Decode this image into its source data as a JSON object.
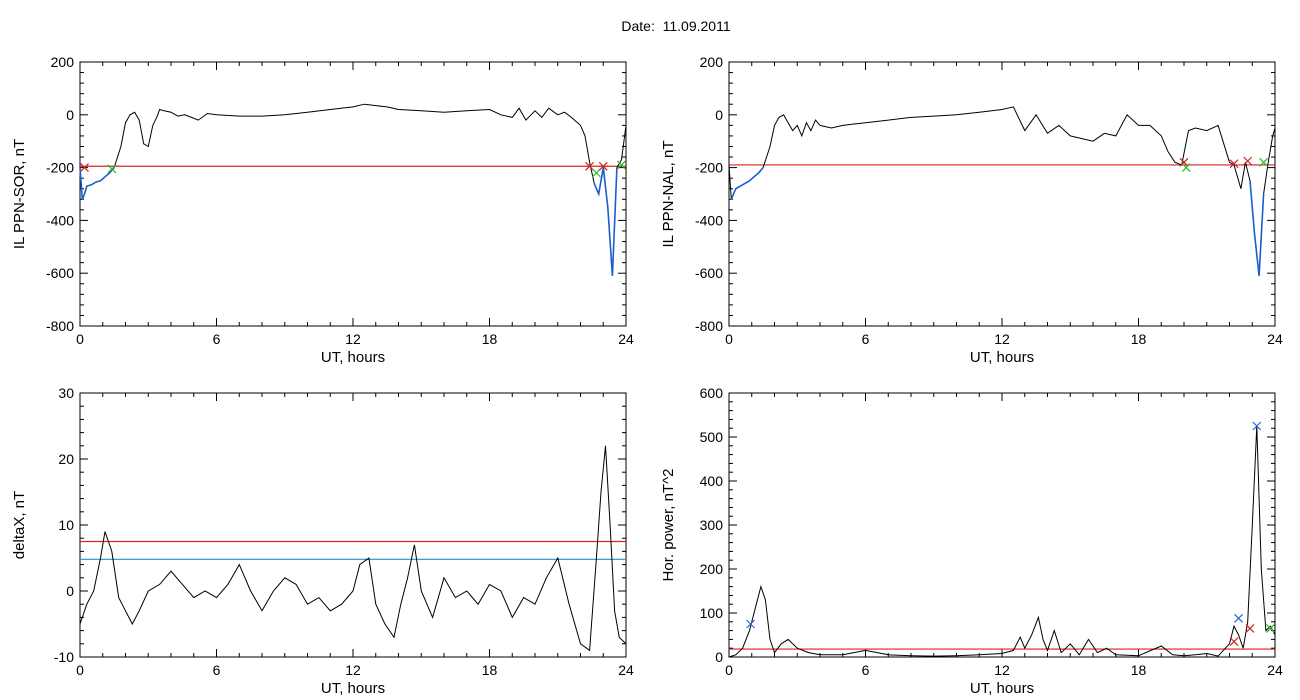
{
  "title": "Date:  11.09.2011",
  "colors": {
    "data": "#000000",
    "threshold_red": "#dd2222",
    "threshold_blue": "#2a8fd0",
    "highlight_blue": "#1a5fd0",
    "marker_green": "#22c022",
    "marker_red": "#cc2222",
    "marker_blue": "#2266dd"
  },
  "chart_data": [
    {
      "type": "line",
      "ylabel": "IL PPN-SOR, nT",
      "xlabel": "UT, hours",
      "xlim": [
        0,
        24
      ],
      "ylim": [
        -800,
        200
      ],
      "xticks": [
        0,
        6,
        12,
        18,
        24
      ],
      "xtick_labels": [
        "0",
        "6",
        "12",
        "18",
        "24"
      ],
      "yticks": [
        -800,
        -600,
        -400,
        -200,
        0,
        200
      ],
      "ytick_labels": [
        "-800",
        "-600",
        "-400",
        "-200",
        "0",
        "200"
      ],
      "thresholds": [
        {
          "y": -195,
          "color": "red"
        }
      ],
      "x": [
        0,
        0.1,
        0.2,
        0.3,
        0.5,
        0.7,
        0.9,
        1.1,
        1.3,
        1.5,
        1.8,
        2.0,
        2.2,
        2.4,
        2.6,
        2.8,
        3.0,
        3.2,
        3.4,
        3.5,
        3.7,
        4.0,
        4.3,
        4.6,
        4.9,
        5.2,
        5.6,
        6,
        7,
        8,
        9,
        10,
        11,
        12,
        12.5,
        13,
        13.5,
        14,
        15,
        16,
        17,
        18,
        18.5,
        19,
        19.3,
        19.6,
        20,
        20.3,
        20.6,
        21,
        21.3,
        21.6,
        22,
        22.2,
        22.4,
        22.6,
        22.8,
        23.0,
        23.2,
        23.4,
        23.6,
        23.8,
        24
      ],
      "values": [
        -200,
        -320,
        -300,
        -270,
        -265,
        -255,
        -250,
        -235,
        -220,
        -200,
        -120,
        -30,
        0,
        10,
        -20,
        -110,
        -120,
        -40,
        -5,
        20,
        15,
        10,
        -5,
        0,
        -10,
        -20,
        5,
        0,
        -5,
        -5,
        0,
        10,
        20,
        30,
        40,
        35,
        30,
        20,
        15,
        10,
        15,
        20,
        0,
        -10,
        25,
        -20,
        15,
        -10,
        25,
        0,
        10,
        -10,
        -40,
        -80,
        -180,
        -260,
        -300,
        -200,
        -350,
        -610,
        -200,
        -170,
        -40
      ],
      "markers": [
        {
          "x": 0.2,
          "y": -200,
          "symbol": "x",
          "color": "red"
        },
        {
          "x": 1.4,
          "y": -205,
          "symbol": "x",
          "color": "green"
        },
        {
          "x": 22.4,
          "y": -195,
          "symbol": "x",
          "color": "red"
        },
        {
          "x": 22.7,
          "y": -220,
          "symbol": "x",
          "color": "green"
        },
        {
          "x": 23.0,
          "y": -195,
          "symbol": "x",
          "color": "red"
        },
        {
          "x": 23.8,
          "y": -190,
          "symbol": "x",
          "color": "green"
        }
      ]
    },
    {
      "type": "line",
      "ylabel": "IL PPN-NAL, nT",
      "xlabel": "UT, hours",
      "xlim": [
        0,
        24
      ],
      "ylim": [
        -800,
        200
      ],
      "xticks": [
        0,
        6,
        12,
        18,
        24
      ],
      "xtick_labels": [
        "0",
        "6",
        "12",
        "18",
        "24"
      ],
      "yticks": [
        -800,
        -600,
        -400,
        -200,
        0,
        200
      ],
      "ytick_labels": [
        "-800",
        "-600",
        "-400",
        "-200",
        "0",
        "200"
      ],
      "thresholds": [
        {
          "y": -190,
          "color": "red"
        }
      ],
      "x": [
        0,
        0.1,
        0.2,
        0.3,
        0.5,
        0.7,
        0.9,
        1.1,
        1.3,
        1.5,
        1.8,
        2.0,
        2.2,
        2.4,
        2.6,
        2.8,
        3.0,
        3.2,
        3.4,
        3.6,
        3.8,
        4.0,
        4.5,
        5,
        5.5,
        6,
        7,
        8,
        9,
        10,
        11,
        12,
        12.5,
        13,
        13.5,
        14,
        14.5,
        15,
        16,
        16.5,
        17,
        17.5,
        18,
        18.5,
        19,
        19.3,
        19.6,
        19.9,
        20.2,
        20.5,
        21,
        21.5,
        22,
        22.2,
        22.5,
        22.7,
        22.9,
        23.1,
        23.3,
        23.5,
        23.7,
        23.9,
        24
      ],
      "values": [
        -190,
        -320,
        -300,
        -280,
        -270,
        -260,
        -250,
        -235,
        -220,
        -200,
        -120,
        -40,
        -10,
        0,
        -30,
        -60,
        -40,
        -80,
        -30,
        -60,
        -20,
        -40,
        -50,
        -40,
        -35,
        -30,
        -20,
        -10,
        -5,
        0,
        10,
        20,
        30,
        -60,
        0,
        -70,
        -40,
        -80,
        -100,
        -70,
        -80,
        0,
        -40,
        -40,
        -80,
        -140,
        -180,
        -190,
        -60,
        -50,
        -60,
        -40,
        -180,
        -190,
        -280,
        -180,
        -250,
        -450,
        -610,
        -300,
        -180,
        -80,
        -50
      ],
      "markers": [
        {
          "x": 20.0,
          "y": -180,
          "symbol": "x",
          "color": "red"
        },
        {
          "x": 20.1,
          "y": -200,
          "symbol": "x",
          "color": "green"
        },
        {
          "x": 22.2,
          "y": -185,
          "symbol": "x",
          "color": "red"
        },
        {
          "x": 22.8,
          "y": -175,
          "symbol": "x",
          "color": "red"
        },
        {
          "x": 23.5,
          "y": -180,
          "symbol": "x",
          "color": "green"
        }
      ]
    },
    {
      "type": "line",
      "ylabel": "deltaX, nT",
      "xlabel": "UT, hours",
      "xlim": [
        0,
        24
      ],
      "ylim": [
        -10,
        30
      ],
      "xticks": [
        0,
        6,
        12,
        18,
        24
      ],
      "xtick_labels": [
        "0",
        "6",
        "12",
        "18",
        "24"
      ],
      "yticks": [
        -10,
        0,
        10,
        20,
        30
      ],
      "ytick_labels": [
        "-10",
        "0",
        "10",
        "20",
        "30"
      ],
      "thresholds": [
        {
          "y": 7.5,
          "color": "red"
        },
        {
          "y": 4.8,
          "color": "blue"
        }
      ],
      "x": [
        0,
        0.3,
        0.6,
        0.9,
        1.1,
        1.4,
        1.7,
        2.0,
        2.3,
        2.6,
        3.0,
        3.5,
        4.0,
        4.5,
        5.0,
        5.5,
        6.0,
        6.5,
        7.0,
        7.5,
        8.0,
        8.5,
        9.0,
        9.5,
        10.0,
        10.5,
        11.0,
        11.5,
        12.0,
        12.3,
        12.7,
        13.0,
        13.4,
        13.8,
        14.1,
        14.4,
        14.7,
        15.0,
        15.5,
        16,
        16.5,
        17,
        17.5,
        18,
        18.5,
        19,
        19.5,
        20,
        20.5,
        21,
        21.5,
        22,
        22.4,
        22.7,
        22.9,
        23.1,
        23.3,
        23.5,
        23.7,
        24
      ],
      "values": [
        -5,
        -2,
        0,
        5,
        9,
        6,
        -1,
        -3,
        -5,
        -3,
        0,
        1,
        3,
        1,
        -1,
        0,
        -1,
        1,
        4,
        0,
        -3,
        0,
        2,
        1,
        -2,
        -1,
        -3,
        -2,
        0,
        4,
        5,
        -2,
        -5,
        -7,
        -2,
        2,
        7,
        0,
        -4,
        2,
        -1,
        0,
        -2,
        1,
        0,
        -4,
        -1,
        -2,
        2,
        5,
        -2,
        -8,
        -9,
        5,
        15,
        22,
        10,
        -3,
        -7,
        -8
      ],
      "markers": []
    },
    {
      "type": "line",
      "ylabel": "Hor. power, nT^2",
      "xlabel": "UT, hours",
      "xlim": [
        0,
        24
      ],
      "ylim": [
        0,
        600
      ],
      "xticks": [
        0,
        6,
        12,
        18,
        24
      ],
      "xtick_labels": [
        "0",
        "6",
        "12",
        "18",
        "24"
      ],
      "yticks": [
        0,
        100,
        200,
        300,
        400,
        500,
        600
      ],
      "ytick_labels": [
        "0",
        "100",
        "200",
        "300",
        "400",
        "500",
        "600"
      ],
      "thresholds": [
        {
          "y": 18,
          "color": "red"
        }
      ],
      "x": [
        0,
        0.3,
        0.6,
        0.9,
        1.0,
        1.2,
        1.4,
        1.6,
        1.8,
        2.0,
        2.3,
        2.6,
        3.0,
        3.5,
        4,
        5,
        6,
        7,
        8,
        9,
        10,
        11,
        12,
        12.5,
        12.8,
        13.0,
        13.3,
        13.6,
        13.8,
        14.0,
        14.3,
        14.6,
        15,
        15.4,
        15.8,
        16.2,
        16.6,
        17,
        18,
        19,
        19.5,
        20,
        20.5,
        21,
        21.5,
        22,
        22.2,
        22.4,
        22.6,
        22.8,
        23.0,
        23.2,
        23.4,
        23.6,
        23.8,
        24
      ],
      "values": [
        0,
        5,
        20,
        60,
        80,
        120,
        160,
        130,
        40,
        10,
        30,
        40,
        20,
        10,
        5,
        5,
        15,
        5,
        3,
        2,
        3,
        5,
        8,
        15,
        45,
        20,
        50,
        90,
        40,
        15,
        60,
        10,
        30,
        5,
        40,
        10,
        20,
        5,
        3,
        25,
        5,
        3,
        5,
        8,
        2,
        30,
        70,
        50,
        20,
        80,
        300,
        525,
        200,
        60,
        70,
        50
      ],
      "markers": [
        {
          "x": 0.95,
          "y": 75,
          "symbol": "x",
          "color": "blue"
        },
        {
          "x": 22.2,
          "y": 35,
          "symbol": "x",
          "color": "red"
        },
        {
          "x": 22.4,
          "y": 88,
          "symbol": "x",
          "color": "blue"
        },
        {
          "x": 22.9,
          "y": 65,
          "symbol": "x",
          "color": "red"
        },
        {
          "x": 23.2,
          "y": 525,
          "symbol": "x",
          "color": "blue"
        },
        {
          "x": 23.8,
          "y": 65,
          "symbol": "x",
          "color": "green"
        }
      ]
    }
  ]
}
